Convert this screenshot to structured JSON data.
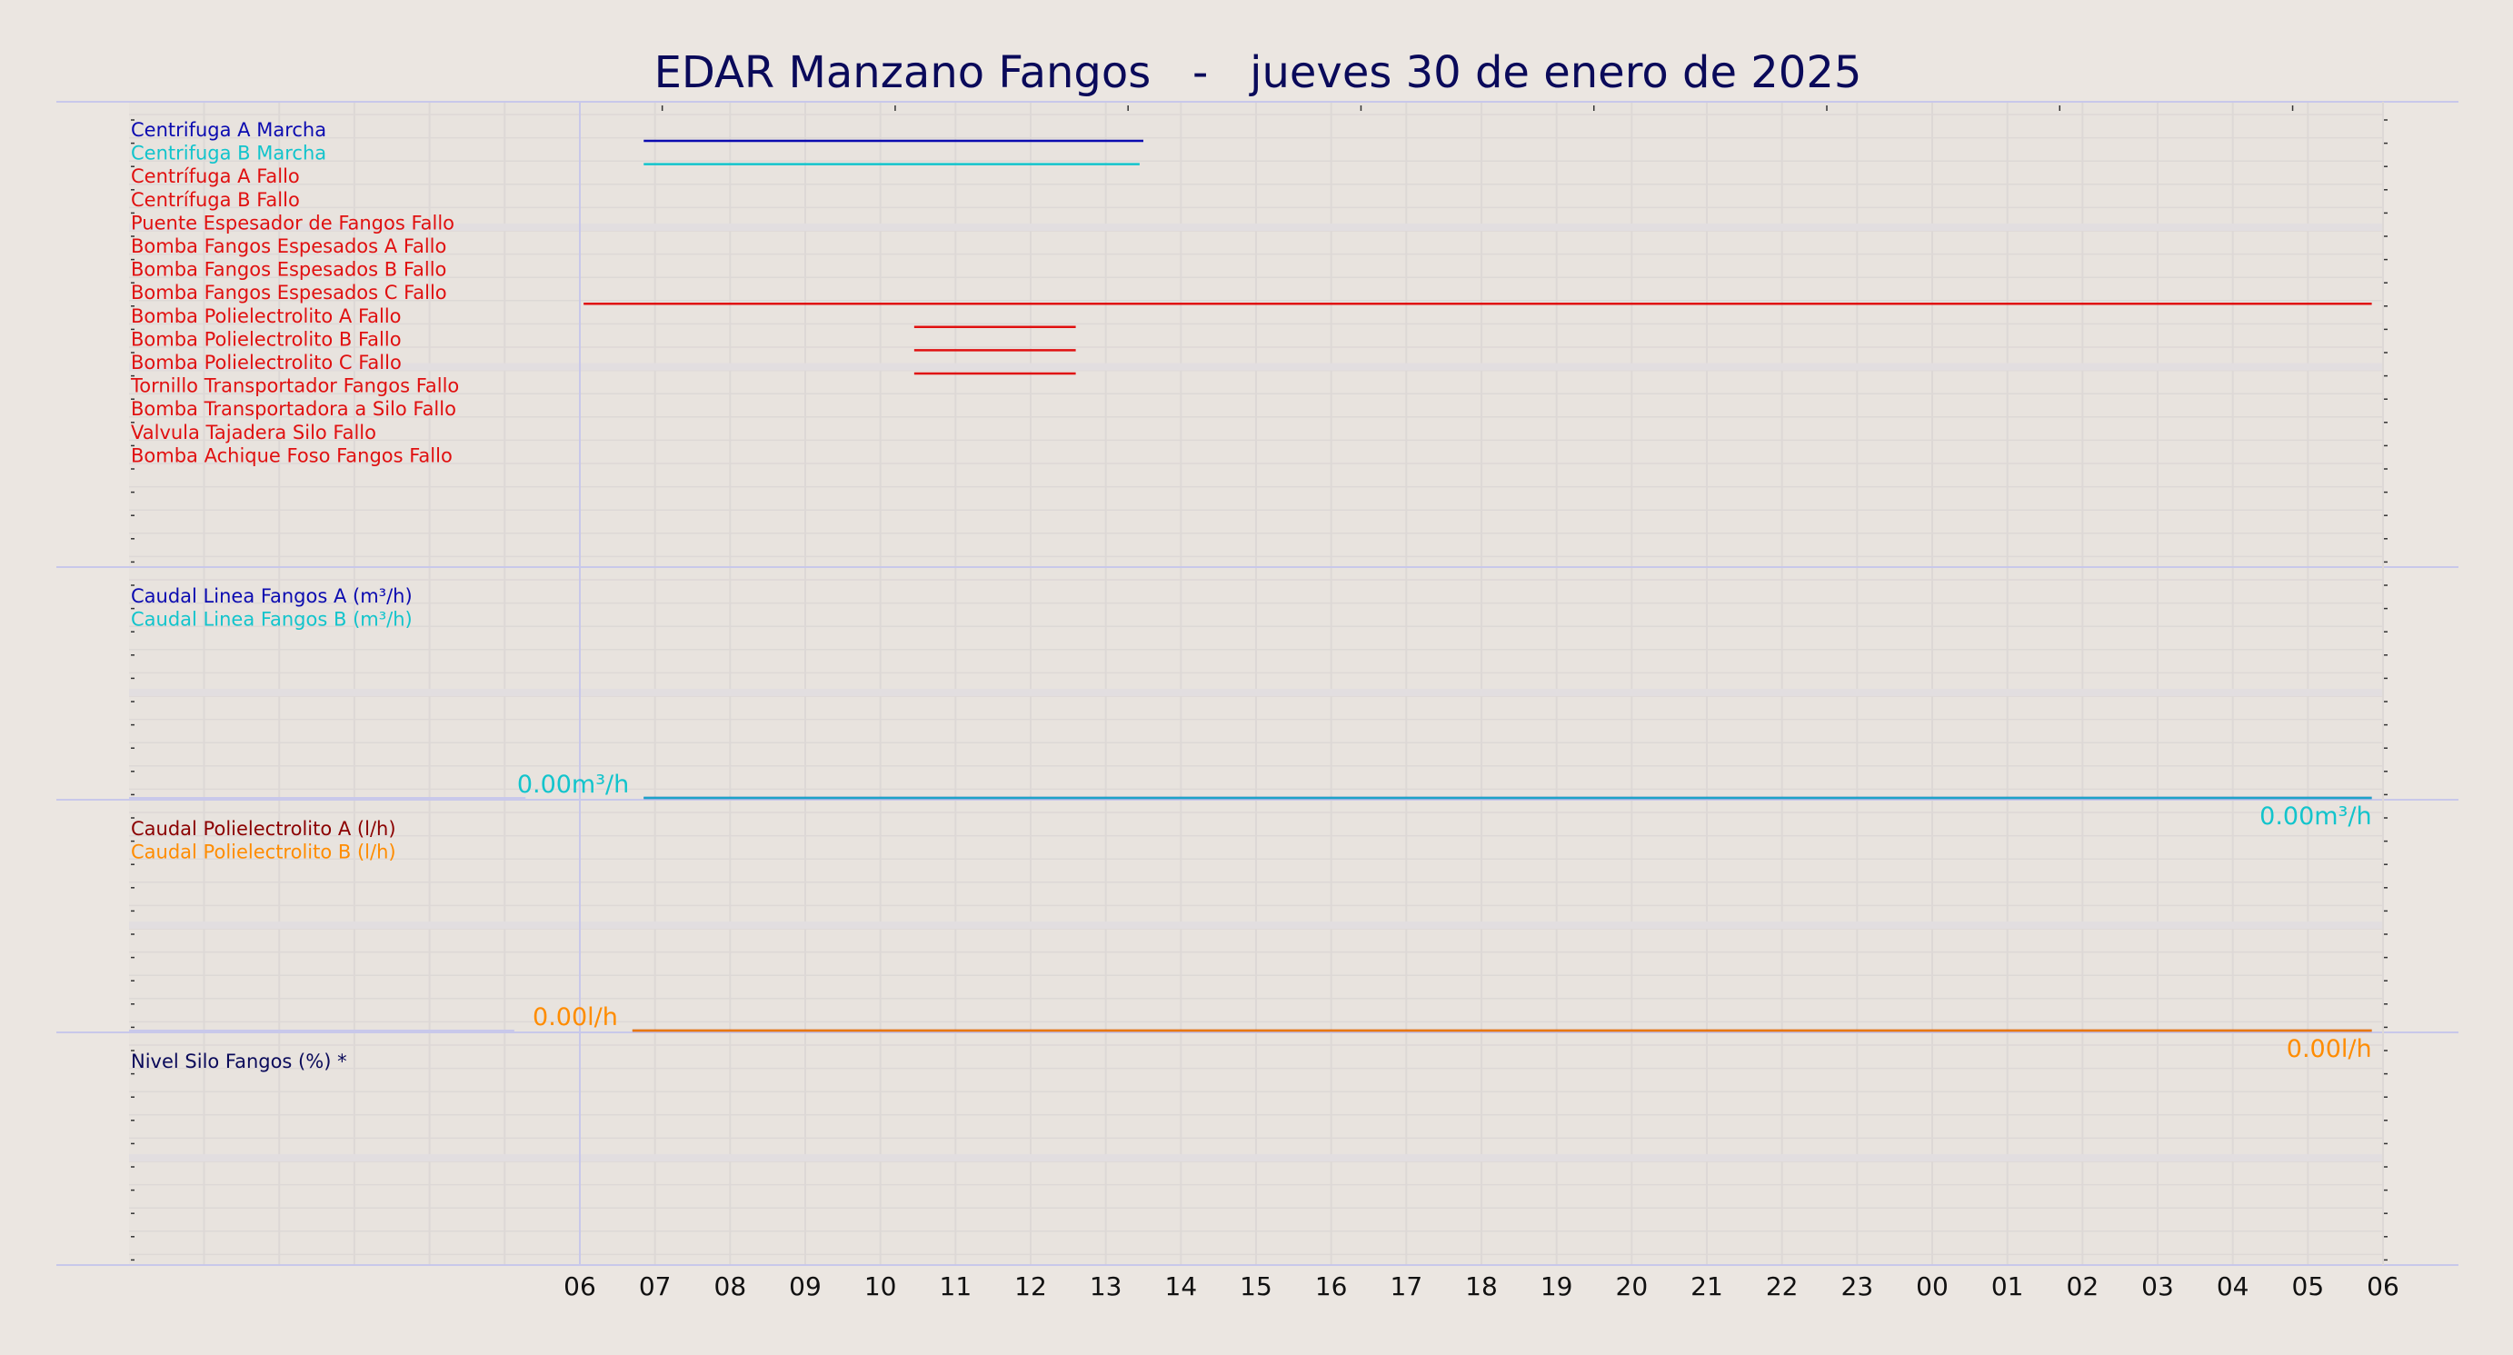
{
  "title": "EDAR Manzano Fangos   -   jueves 30 de enero de 2025",
  "colors": {
    "background": "#ebe6e1",
    "title": "#0a0a5a",
    "grid": "#ddd8d6",
    "band": "#e2dee0",
    "separator": "#c8c8ea",
    "dark_blue": "#0b0bb0",
    "cyan": "#12c4cc",
    "red": "#e01010",
    "dark_red": "#8b0000",
    "orange": "#ff8c00",
    "navy": "#0a0a5a"
  },
  "x_axis": {
    "tick_labels": [
      "06",
      "07",
      "08",
      "09",
      "10",
      "11",
      "12",
      "13",
      "14",
      "15",
      "16",
      "17",
      "18",
      "19",
      "20",
      "21",
      "22",
      "23",
      "00",
      "01",
      "02",
      "03",
      "04",
      "05",
      "06"
    ]
  },
  "chart_data": [
    {
      "type": "line",
      "panel": "estados",
      "x_unit": "hour of day (6 = 06:00 on 30 Jan, 30 = 06:00 next day)",
      "xlim": [
        6,
        30
      ],
      "series": [
        {
          "name": "Centrifuga A Marcha",
          "color": "#0b0bb0",
          "on": [
            [
              6.85,
              13.5
            ]
          ]
        },
        {
          "name": "Centrifuga B Marcha",
          "color": "#12c4cc",
          "on": [
            [
              6.85,
              13.45
            ]
          ]
        },
        {
          "name": "Centrífuga A Fallo",
          "color": "#e01010",
          "on": []
        },
        {
          "name": "Centrífuga B Fallo",
          "color": "#e01010",
          "on": []
        },
        {
          "name": "Puente Espesador de Fangos Fallo",
          "color": "#e01010",
          "on": []
        },
        {
          "name": "Bomba Fangos Espesados A Fallo",
          "color": "#e01010",
          "on": []
        },
        {
          "name": "Bomba Fangos Espesados B Fallo",
          "color": "#e01010",
          "on": []
        },
        {
          "name": "Bomba Fangos Espesados C Fallo",
          "color": "#e01010",
          "on": [
            [
              6.05,
              29.85
            ]
          ]
        },
        {
          "name": "Bomba Polielectrolito A Fallo",
          "color": "#e01010",
          "on": [
            [
              10.45,
              12.6
            ]
          ]
        },
        {
          "name": "Bomba Polielectrolito B Fallo",
          "color": "#e01010",
          "on": [
            [
              10.45,
              12.6
            ]
          ]
        },
        {
          "name": "Bomba Polielectrolito C Fallo",
          "color": "#e01010",
          "on": [
            [
              10.45,
              12.6
            ]
          ]
        },
        {
          "name": "Tornillo Transportador Fangos Fallo",
          "color": "#e01010",
          "on": []
        },
        {
          "name": "Bomba Transportadora a Silo Fallo",
          "color": "#e01010",
          "on": []
        },
        {
          "name": "Valvula Tajadera Silo Fallo",
          "color": "#e01010",
          "on": []
        },
        {
          "name": "Bomba Achique Foso Fangos Fallo",
          "color": "#e01010",
          "on": []
        }
      ]
    },
    {
      "type": "line",
      "panel": "caudal-fangos",
      "xlim": [
        6,
        30
      ],
      "series": [
        {
          "name": "Caudal Linea Fangos A (m³/h)",
          "color": "#0b0bb0",
          "x": [
            6.85,
            29.85
          ],
          "y": [
            0,
            0
          ]
        },
        {
          "name": "Caudal Linea Fangos B (m³/h)",
          "color": "#12c4cc",
          "x": [
            6.85,
            29.85
          ],
          "y": [
            0,
            0
          ]
        }
      ],
      "value_labels": {
        "start": "0.00m³/h",
        "end": "0.00m³/h"
      }
    },
    {
      "type": "line",
      "panel": "caudal-polielectrolito",
      "xlim": [
        6,
        30
      ],
      "series": [
        {
          "name": "Caudal Polielectrolito A (l/h)",
          "color": "#8b0000",
          "x": [
            6.7,
            29.85
          ],
          "y": [
            0,
            0
          ]
        },
        {
          "name": "Caudal Polielectrolito B (l/h)",
          "color": "#ff8c00",
          "x": [
            6.7,
            29.85
          ],
          "y": [
            0,
            0
          ]
        }
      ],
      "value_labels": {
        "start": "0.00l/h",
        "end": "0.00l/h"
      }
    },
    {
      "type": "line",
      "panel": "nivel-silo",
      "xlim": [
        6,
        30
      ],
      "series": [
        {
          "name": "Nivel Silo Fangos (%) *",
          "color": "#0a0a5a",
          "x": [],
          "y": []
        }
      ]
    }
  ]
}
